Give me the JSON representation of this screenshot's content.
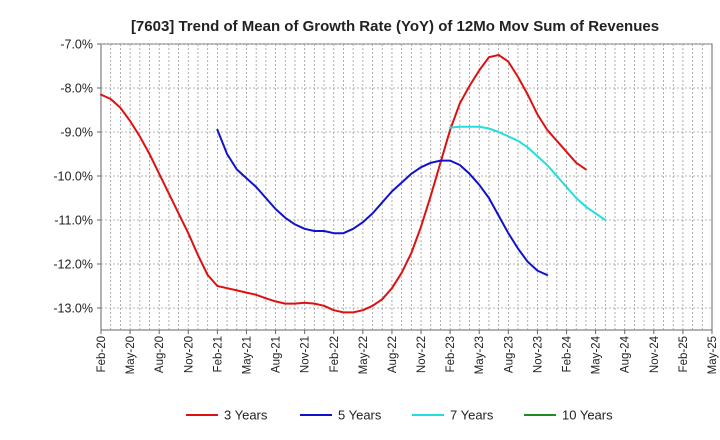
{
  "chart_data": {
    "type": "line",
    "title": "[7603]  Trend of Mean of Growth Rate (YoY) of 12Mo Mov Sum of Revenues",
    "xlabel": "",
    "ylabel": "",
    "ylim": [
      -13.5,
      -7.0
    ],
    "yticks": [
      -7.0,
      -8.0,
      -9.0,
      -10.0,
      -11.0,
      -12.0,
      -13.0
    ],
    "ytick_labels": [
      "-7.0%",
      "-8.0%",
      "-9.0%",
      "-10.0%",
      "-11.0%",
      "-12.0%",
      "-13.0%"
    ],
    "x_start": "Feb-20",
    "x_months": 63,
    "x_tick_labels": [
      "Feb-20",
      "May-20",
      "Aug-20",
      "Nov-20",
      "Feb-21",
      "May-21",
      "Aug-21",
      "Nov-21",
      "Feb-22",
      "May-22",
      "Aug-22",
      "Nov-22",
      "Feb-23",
      "May-23",
      "Aug-23",
      "Nov-23",
      "Feb-24",
      "May-24",
      "Aug-24",
      "Nov-24",
      "Feb-25",
      "May-25"
    ],
    "grid": true,
    "legend_position": "bottom",
    "series": [
      {
        "name": "3 Years",
        "color": "#dd1111",
        "points": [
          [
            0,
            -8.15
          ],
          [
            1,
            -8.25
          ],
          [
            2,
            -8.45
          ],
          [
            3,
            -8.75
          ],
          [
            4,
            -9.1
          ],
          [
            5,
            -9.5
          ],
          [
            6,
            -9.95
          ],
          [
            7,
            -10.4
          ],
          [
            8,
            -10.85
          ],
          [
            9,
            -11.3
          ],
          [
            10,
            -11.8
          ],
          [
            11,
            -12.25
          ],
          [
            12,
            -12.5
          ],
          [
            13,
            -12.55
          ],
          [
            14,
            -12.6
          ],
          [
            15,
            -12.65
          ],
          [
            16,
            -12.7
          ],
          [
            17,
            -12.78
          ],
          [
            18,
            -12.85
          ],
          [
            19,
            -12.9
          ],
          [
            20,
            -12.9
          ],
          [
            21,
            -12.88
          ],
          [
            22,
            -12.9
          ],
          [
            23,
            -12.95
          ],
          [
            24,
            -13.05
          ],
          [
            25,
            -13.1
          ],
          [
            26,
            -13.1
          ],
          [
            27,
            -13.05
          ],
          [
            28,
            -12.95
          ],
          [
            29,
            -12.8
          ],
          [
            30,
            -12.55
          ],
          [
            31,
            -12.2
          ],
          [
            32,
            -11.75
          ],
          [
            33,
            -11.15
          ],
          [
            34,
            -10.45
          ],
          [
            35,
            -9.7
          ],
          [
            36,
            -8.95
          ],
          [
            37,
            -8.35
          ],
          [
            38,
            -7.95
          ],
          [
            39,
            -7.6
          ],
          [
            40,
            -7.3
          ],
          [
            41,
            -7.25
          ],
          [
            42,
            -7.4
          ],
          [
            43,
            -7.75
          ],
          [
            44,
            -8.15
          ],
          [
            45,
            -8.6
          ],
          [
            46,
            -8.95
          ],
          [
            47,
            -9.2
          ],
          [
            48,
            -9.45
          ],
          [
            49,
            -9.7
          ],
          [
            50,
            -9.85
          ]
        ]
      },
      {
        "name": "5 Years",
        "color": "#1111cc",
        "points": [
          [
            12,
            -8.95
          ],
          [
            13,
            -9.5
          ],
          [
            14,
            -9.85
          ],
          [
            15,
            -10.05
          ],
          [
            16,
            -10.25
          ],
          [
            17,
            -10.5
          ],
          [
            18,
            -10.75
          ],
          [
            19,
            -10.95
          ],
          [
            20,
            -11.1
          ],
          [
            21,
            -11.2
          ],
          [
            22,
            -11.25
          ],
          [
            23,
            -11.25
          ],
          [
            24,
            -11.3
          ],
          [
            25,
            -11.3
          ],
          [
            26,
            -11.2
          ],
          [
            27,
            -11.05
          ],
          [
            28,
            -10.85
          ],
          [
            29,
            -10.6
          ],
          [
            30,
            -10.35
          ],
          [
            31,
            -10.15
          ],
          [
            32,
            -9.95
          ],
          [
            33,
            -9.8
          ],
          [
            34,
            -9.7
          ],
          [
            35,
            -9.65
          ],
          [
            36,
            -9.65
          ],
          [
            37,
            -9.75
          ],
          [
            38,
            -9.95
          ],
          [
            39,
            -10.2
          ],
          [
            40,
            -10.5
          ],
          [
            41,
            -10.9
          ],
          [
            42,
            -11.3
          ],
          [
            43,
            -11.65
          ],
          [
            44,
            -11.95
          ],
          [
            45,
            -12.15
          ],
          [
            46,
            -12.25
          ]
        ]
      },
      {
        "name": "7 Years",
        "color": "#22dddd",
        "points": [
          [
            36,
            -8.9
          ],
          [
            37,
            -8.88
          ],
          [
            38,
            -8.88
          ],
          [
            39,
            -8.88
          ],
          [
            40,
            -8.92
          ],
          [
            41,
            -9.0
          ],
          [
            42,
            -9.1
          ],
          [
            43,
            -9.2
          ],
          [
            44,
            -9.35
          ],
          [
            45,
            -9.55
          ],
          [
            46,
            -9.75
          ],
          [
            47,
            -10.0
          ],
          [
            48,
            -10.25
          ],
          [
            49,
            -10.5
          ],
          [
            50,
            -10.7
          ],
          [
            51,
            -10.85
          ],
          [
            52,
            -11.0
          ]
        ]
      },
      {
        "name": "10 Years",
        "color": "#228822",
        "points": []
      }
    ]
  }
}
